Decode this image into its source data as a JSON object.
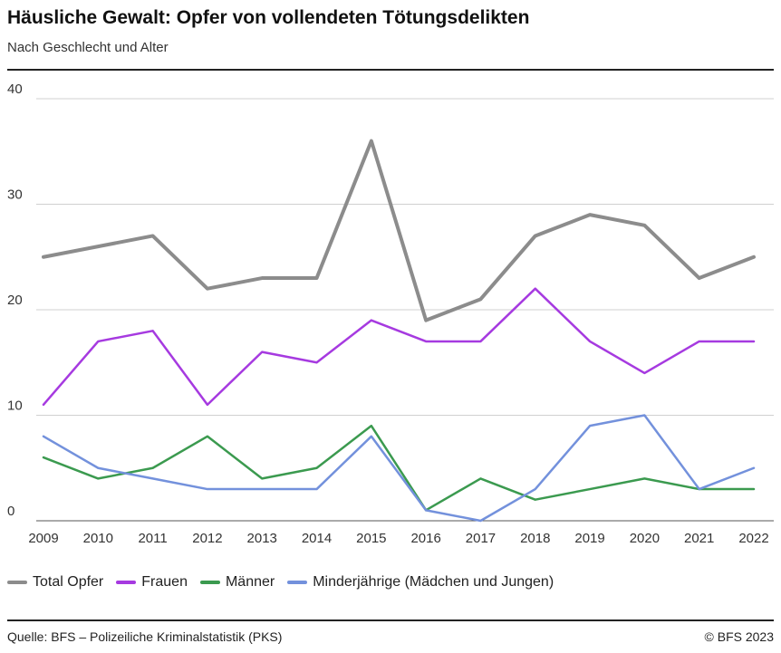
{
  "title": "Häusliche Gewalt: Opfer von vollendeten Tötungsdelikten",
  "subtitle": "Nach Geschlecht und Alter",
  "source": "Quelle: BFS – Polizeiliche Kriminalstatistik (PKS)",
  "copyright": "© BFS 2023",
  "chart_data": {
    "type": "line",
    "x": [
      "2009",
      "2010",
      "2011",
      "2012",
      "2013",
      "2014",
      "2015",
      "2016",
      "2017",
      "2018",
      "2019",
      "2020",
      "2021",
      "2022"
    ],
    "ylim": [
      0,
      40
    ],
    "yticks": [
      "0",
      "10",
      "20",
      "30",
      "40"
    ],
    "grid": true,
    "legend": "bottom",
    "series": [
      {
        "name": "Total Opfer",
        "color": "#8c8c8c",
        "width": 4,
        "values": [
          25,
          26,
          27,
          22,
          23,
          23,
          36,
          19,
          21,
          27,
          29,
          28,
          23,
          25
        ]
      },
      {
        "name": "Frauen",
        "color": "#a63ae0",
        "width": 2.5,
        "values": [
          11,
          17,
          18,
          11,
          16,
          15,
          19,
          17,
          17,
          22,
          17,
          14,
          17,
          17
        ]
      },
      {
        "name": "Männer",
        "color": "#3b9a4f",
        "width": 2.5,
        "values": [
          6,
          4,
          5,
          8,
          4,
          5,
          9,
          1,
          4,
          2,
          3,
          4,
          3,
          3
        ]
      },
      {
        "name": "Minderjährige (Mädchen und Jungen)",
        "color": "#7391dc",
        "width": 2.5,
        "values": [
          8,
          5,
          4,
          3,
          3,
          3,
          8,
          1,
          0,
          3,
          9,
          10,
          3,
          5
        ]
      }
    ]
  }
}
